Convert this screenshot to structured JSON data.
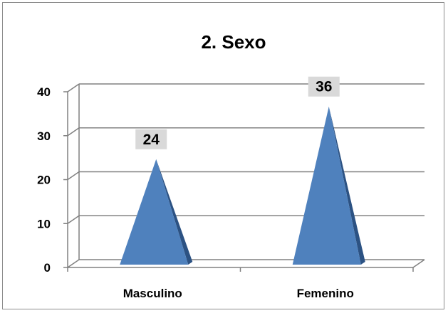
{
  "chart_data": {
    "type": "bar",
    "title": "2. Sexo",
    "categories": [
      "Masculino",
      "Femenino"
    ],
    "values": [
      24,
      36
    ],
    "ylim": [
      0,
      40
    ],
    "yticks": [
      "0",
      "10",
      "20",
      "30",
      "40"
    ],
    "grid": true,
    "legend": "none",
    "bar_shape": "pyramid-3d",
    "colors": {
      "bar_front": "#4F81BD",
      "bar_side": "#2C5283",
      "data_label_bg": "#D9D9D9",
      "grid": "#808080"
    }
  }
}
